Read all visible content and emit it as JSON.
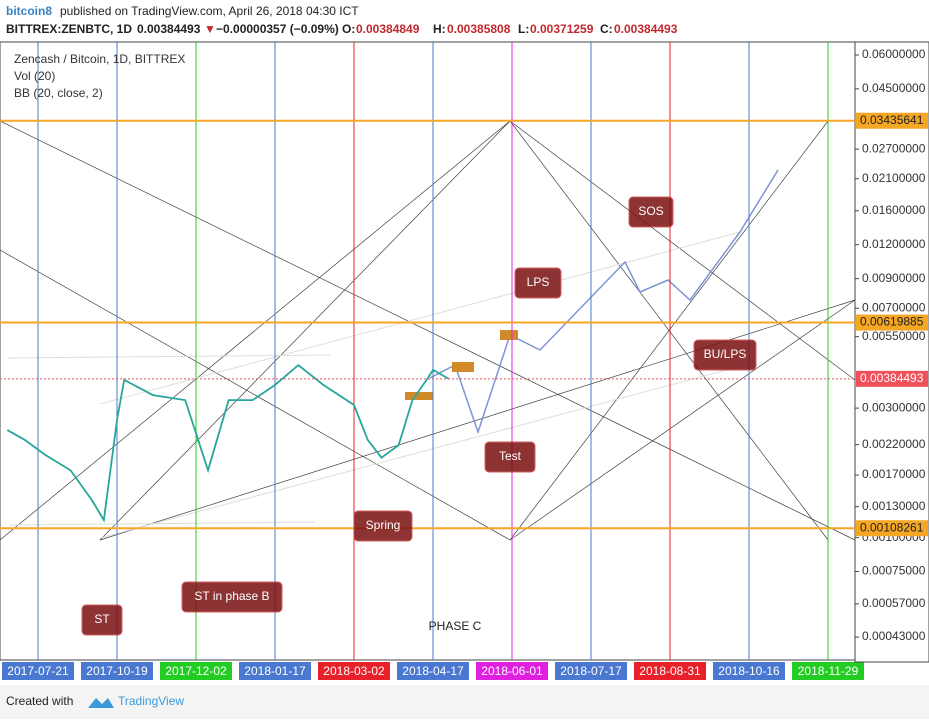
{
  "header": {
    "author": "bitcoin8",
    "published": "published on TradingView.com, April 26, 2018 04:30 ICT",
    "symbol": "BITTREX:ZENBTC, 1D",
    "last": "0.00384493",
    "arrow": "▼",
    "change": "−0.00000357 (−0.09%)",
    "o_label": "O:",
    "o": "0.00384849",
    "h_label": "H:",
    "h": "0.00385808",
    "l_label": "L:",
    "l": "0.00371259",
    "c_label": "C:",
    "c": "0.00384493"
  },
  "legend": [
    "Zencash / Bitcoin, 1D, BITTREX",
    "Vol (20)",
    "BB (20, close, 2)"
  ],
  "chart_data": {
    "type": "line",
    "log_scale": true,
    "ylim": [
      0.00036,
      0.067
    ],
    "yticks": [
      {
        "value": 0.06,
        "label": "0.06000000"
      },
      {
        "value": 0.045,
        "label": "0.04500000"
      },
      {
        "value": 0.027,
        "label": "0.02700000"
      },
      {
        "value": 0.021,
        "label": "0.02100000"
      },
      {
        "value": 0.016,
        "label": "0.01600000"
      },
      {
        "value": 0.012,
        "label": "0.01200000"
      },
      {
        "value": 0.009,
        "label": "0.00900000"
      },
      {
        "value": 0.007,
        "label": "0.00700000"
      },
      {
        "value": 0.0055,
        "label": "0.00550000"
      },
      {
        "value": 0.003,
        "label": "0.00300000"
      },
      {
        "value": 0.0022,
        "label": "0.00220000"
      },
      {
        "value": 0.0017,
        "label": "0.00170000"
      },
      {
        "value": 0.0013,
        "label": "0.00130000"
      },
      {
        "value": 0.001,
        "label": "0.00100000"
      },
      {
        "value": 0.00075,
        "label": "0.00075000"
      },
      {
        "value": 0.00057,
        "label": "0.00057000"
      },
      {
        "value": 0.00043,
        "label": "0.00043000"
      }
    ],
    "xticks": [
      "2017-07-21",
      "2017-10-19",
      "2017-12-02",
      "2018-01-17",
      "2018-03-02",
      "2018-04-17",
      "2018-06-01",
      "2018-07-17",
      "2018-08-31",
      "2018-10-16",
      "2018-11-29"
    ],
    "xtick_colors": [
      "#4a78d0",
      "#4a78d0",
      "#22cc22",
      "#4a78d0",
      "#e8202a",
      "#4a78d0",
      "#e020e0",
      "#4a78d0",
      "#e8202a",
      "#4a78d0",
      "#22cc22"
    ],
    "levels": [
      {
        "value": 0.03435641,
        "label": "0.03435641",
        "color": "#f5a623"
      },
      {
        "value": 0.00619885,
        "label": "0.00619885",
        "color": "#f5a623"
      },
      {
        "value": 0.00108261,
        "label": "0.00108261",
        "color": "#f5a623"
      }
    ],
    "last_price": {
      "value": 0.00384493,
      "label": "0.00384493",
      "color": "#f0505a"
    },
    "series": [
      {
        "name": "ZENBTC",
        "color": "#26a69a",
        "x": [
          "2017-06-16",
          "2017-07-06",
          "2017-07-29",
          "2017-08-27",
          "2017-09-20",
          "2017-10-04",
          "2017-10-19",
          "2017-10-23",
          "2017-11-08",
          "2017-11-26",
          "2017-12-09",
          "2017-12-21",
          "2018-01-04",
          "2018-01-17",
          "2018-01-30",
          "2018-02-13",
          "2018-03-02",
          "2018-03-10",
          "2018-03-18",
          "2018-03-28",
          "2018-04-05",
          "2018-04-14",
          "2018-04-17",
          "2018-04-26"
        ],
        "values": [
          0.00249,
          0.00229,
          0.00202,
          0.00177,
          0.00138,
          0.00116,
          0.00271,
          0.00381,
          0.00335,
          0.00321,
          0.00177,
          0.00321,
          0.00321,
          0.00365,
          0.00432,
          0.00365,
          0.00308,
          0.00229,
          0.00197,
          0.00219,
          0.00321,
          0.00387,
          0.00415,
          0.00384493
        ]
      }
    ]
  },
  "annotations": [
    "ST",
    "ST in phase B",
    "Spring",
    "Test",
    "LPS",
    "SOS",
    "BU/LPS",
    "PHASE C"
  ],
  "footer": {
    "created": "Created with",
    "brand": "TradingView"
  }
}
